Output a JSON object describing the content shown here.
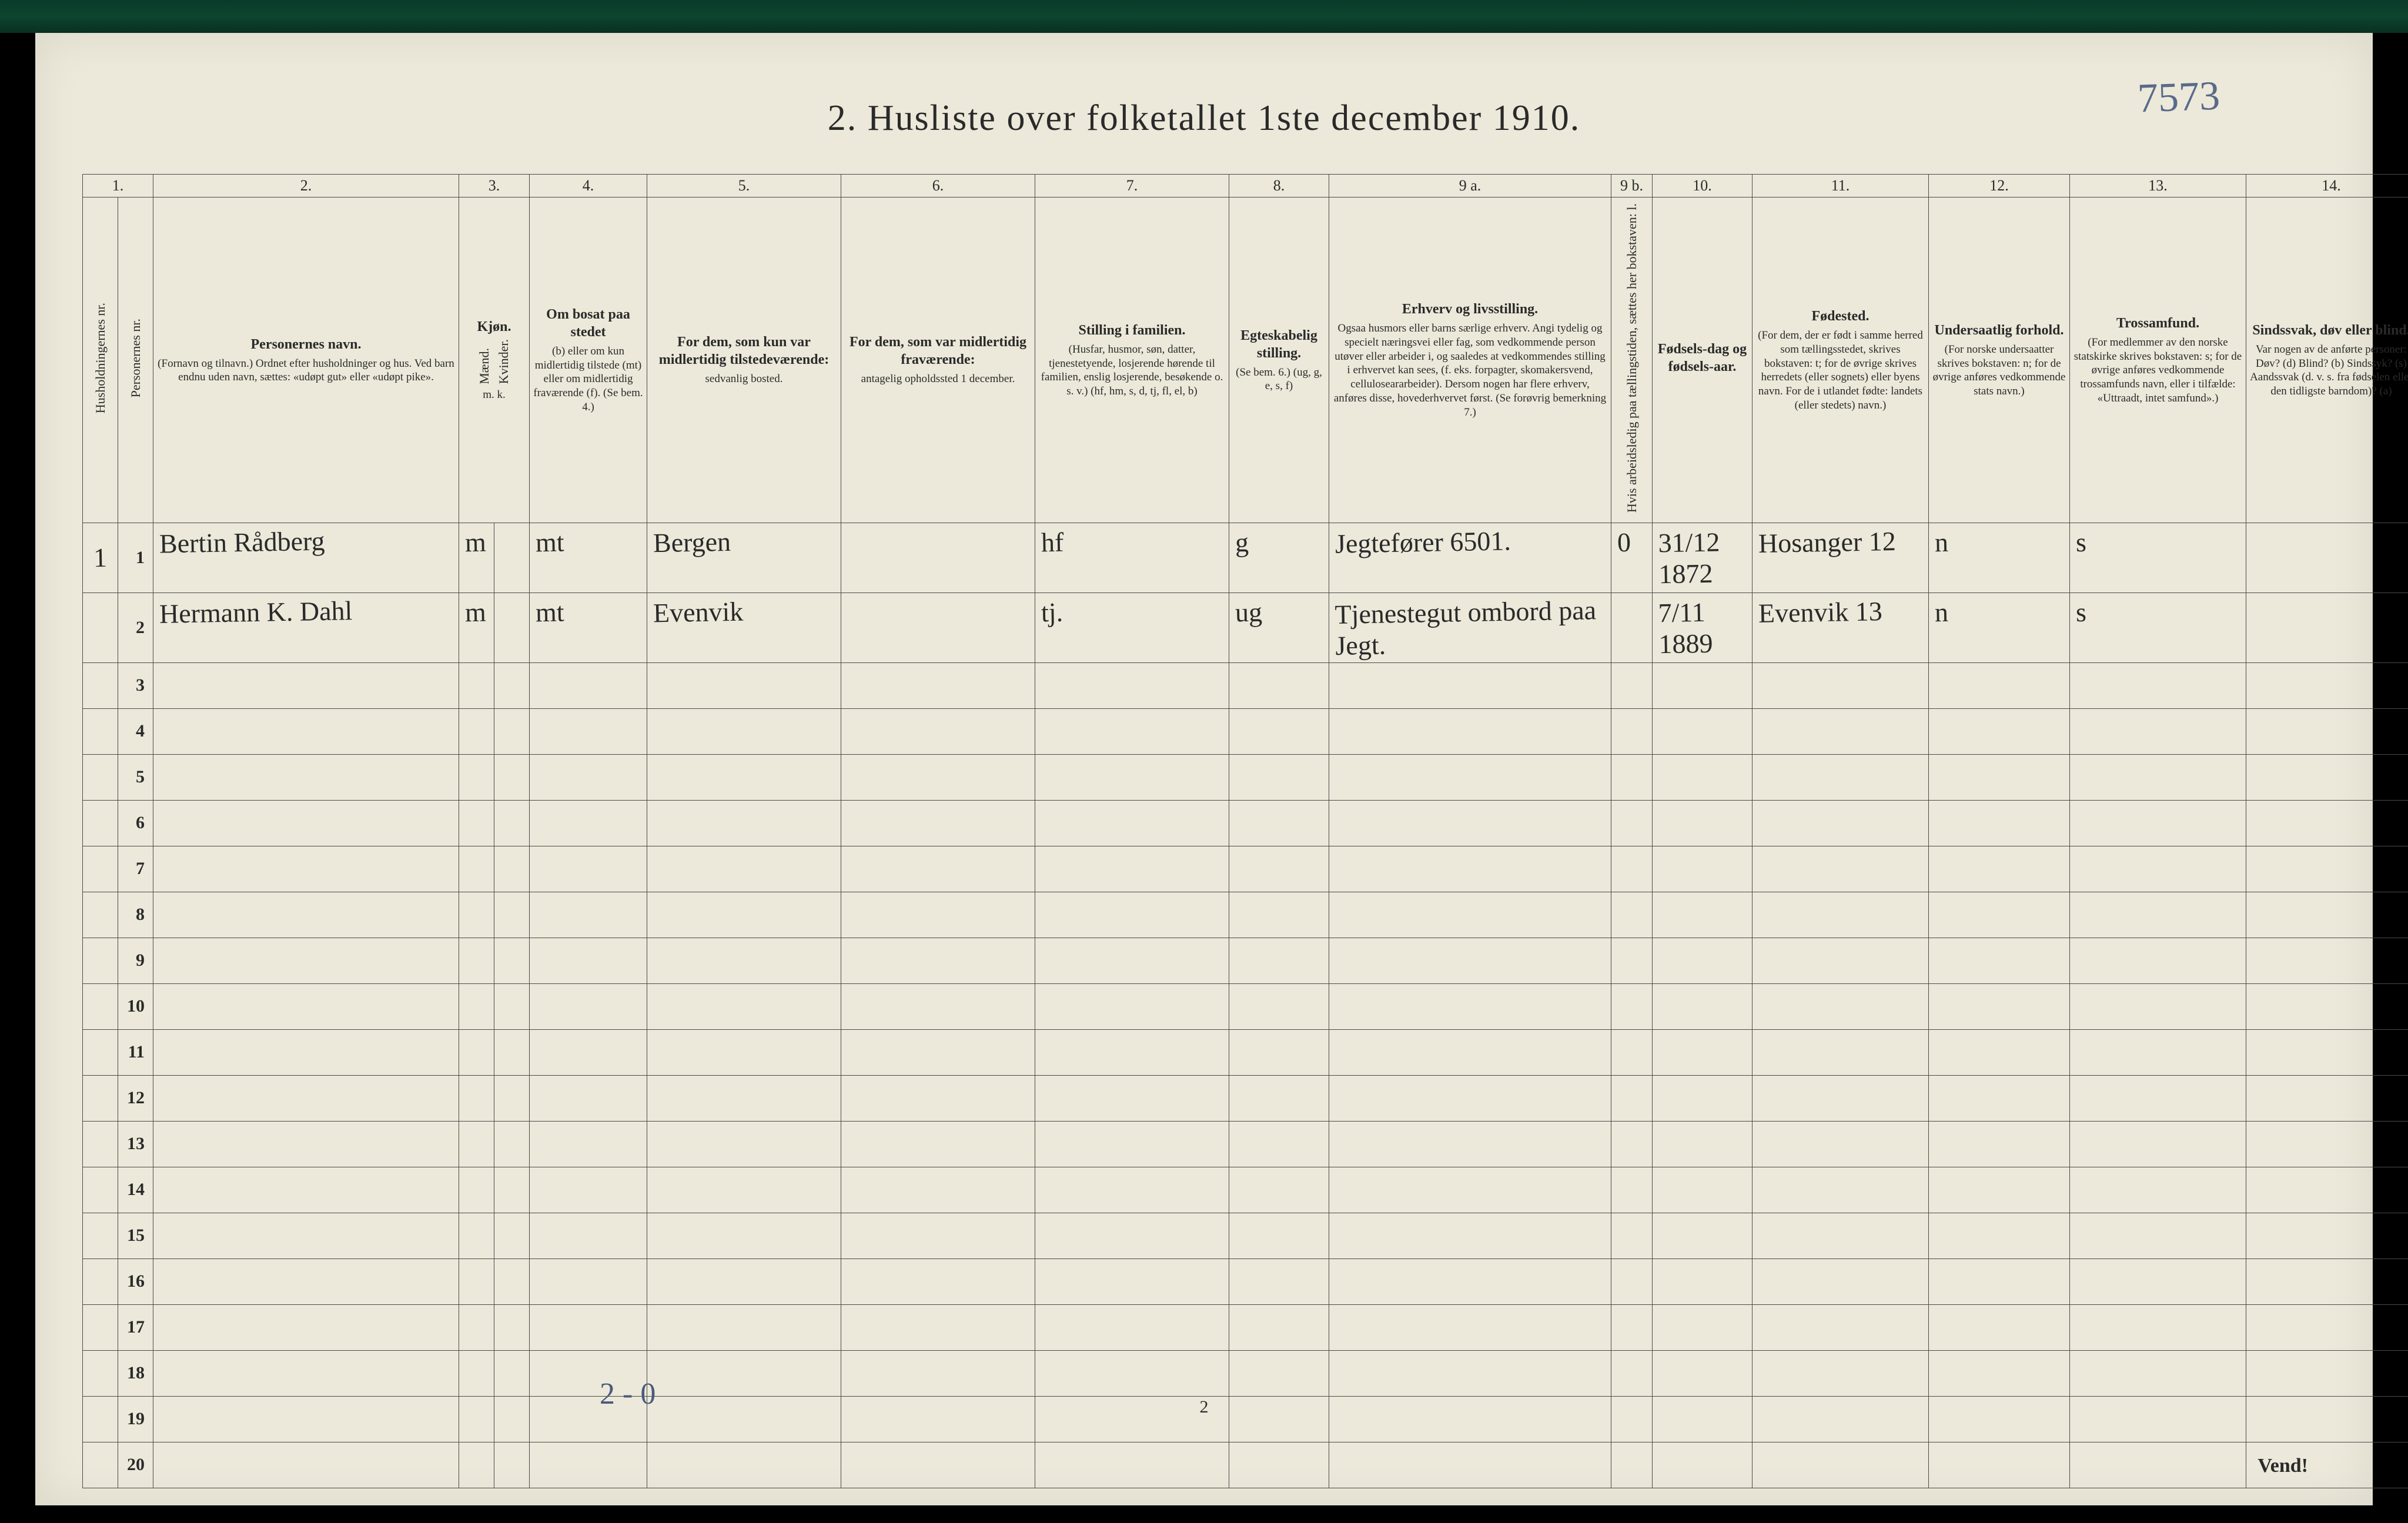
{
  "colors": {
    "page_bg": "#ece9da",
    "border": "#4a4a4a",
    "text": "#2a2a2a",
    "ink_blue": "#5a6a8a",
    "top_bar": "#0d4530"
  },
  "typography": {
    "title_fontsize": 62,
    "header_fontsize": 22,
    "cell_cursive_fontsize": 46,
    "rownum_fontsize": 30
  },
  "title": "2.   Husliste over folketallet 1ste december 1910.",
  "annotation_top_right": "7573",
  "footer_annotation": "2 - 0",
  "page_bottom_number": "2",
  "vend": "Vend!",
  "col_numbers": [
    "1.",
    "2.",
    "3.",
    "4.",
    "5.",
    "6.",
    "7.",
    "8.",
    "9 a.",
    "9 b.",
    "10.",
    "11.",
    "12.",
    "13.",
    "14."
  ],
  "headers": {
    "c1a": "Husholdningernes nr.",
    "c1b": "Personernes nr.",
    "c2_title": "Personernes navn.",
    "c2_sub": "(Fornavn og tilnavn.)\nOrdnet efter husholdninger og hus.\nVed barn endnu uden navn, sættes: «udøpt gut» eller «udøpt pike».",
    "c3_title": "Kjøn.",
    "c3a": "Mænd.",
    "c3b": "Kvinder.",
    "c3_foot": "m.  k.",
    "c4_title": "Om bosat paa stedet",
    "c4_sub": "(b) eller om kun midlertidig tilstede (mt) eller om midlertidig fraværende (f).\n(Se bem. 4.)",
    "c5_title": "For dem, som kun var midlertidig tilstedeværende:",
    "c5_sub": "sedvanlig bosted.",
    "c6_title": "For dem, som var midlertidig fraværende:",
    "c6_sub": "antagelig opholdssted 1 december.",
    "c7_title": "Stilling i familien.",
    "c7_sub": "(Husfar, husmor, søn, datter, tjenestetyende, losjerende hørende til familien, enslig losjerende, besøkende o. s. v.)\n(hf, hm, s, d, tj, fl, el, b)",
    "c8_title": "Egteskabelig stilling.",
    "c8_sub": "(Se bem. 6.)\n(ug, g, e, s, f)",
    "c9a_title": "Erhverv og livsstilling.",
    "c9a_sub": "Ogsaa husmors eller barns særlige erhverv. Angi tydelig og specielt næringsvei eller fag, som vedkommende person utøver eller arbeider i, og saaledes at vedkommendes stilling i erhvervet kan sees, (f. eks. forpagter, skomakersvend, celluloseararbeider). Dersom nogen har flere erhverv, anføres disse, hovederhvervet først.\n(Se forøvrig bemerkning 7.)",
    "c9b": "Hvis arbeidsledig paa tællingstiden, sættes her bokstaven: l.",
    "c10_title": "Fødsels-dag og fødsels-aar.",
    "c11_title": "Fødested.",
    "c11_sub": "(For dem, der er født i samme herred som tællingsstedet, skrives bokstaven: t; for de øvrige skrives herredets (eller sognets) eller byens navn. For de i utlandet fødte: landets (eller stedets) navn.)",
    "c12_title": "Undersaatlig forhold.",
    "c12_sub": "(For norske undersaatter skrives bokstaven: n; for de øvrige anføres vedkommende stats navn.)",
    "c13_title": "Trossamfund.",
    "c13_sub": "(For medlemmer av den norske statskirke skrives bokstaven: s; for de øvrige anføres vedkommende trossamfunds navn, eller i tilfælde: «Uttraadt, intet samfund».)",
    "c14_title": "Sindssvak, døv eller blind.",
    "c14_sub": "Var nogen av de anførte personer:\nDøv? (d)\nBlind? (b)\nSindssyk? (s)\nAandssvak (d. v. s. fra fødselen eller den tidligste barndom)? (a)"
  },
  "total_rows": 20,
  "rows": [
    {
      "hh": "1",
      "pn": "1",
      "name": "Bertin Rådberg",
      "sex": "m",
      "residence": "mt",
      "usual_place": "Bergen",
      "absent_place": "",
      "family_pos": "hf",
      "marital": "g",
      "occupation": "Jegtefører 6501.",
      "unemployed": "0",
      "birth": "31/12 1872",
      "birthplace": "Hosanger 12",
      "nationality": "n",
      "religion": "s",
      "disability": ""
    },
    {
      "hh": "",
      "pn": "2",
      "name": "Hermann K. Dahl",
      "sex": "m",
      "residence": "mt",
      "usual_place": "Evenvik",
      "absent_place": "",
      "family_pos": "tj.",
      "marital": "ug",
      "occupation": "Tjenestegut ombord paa Jegt.",
      "unemployed": "",
      "birth": "7/11 1889",
      "birthplace": "Evenvik 13",
      "nationality": "n",
      "religion": "s",
      "disability": ""
    }
  ]
}
